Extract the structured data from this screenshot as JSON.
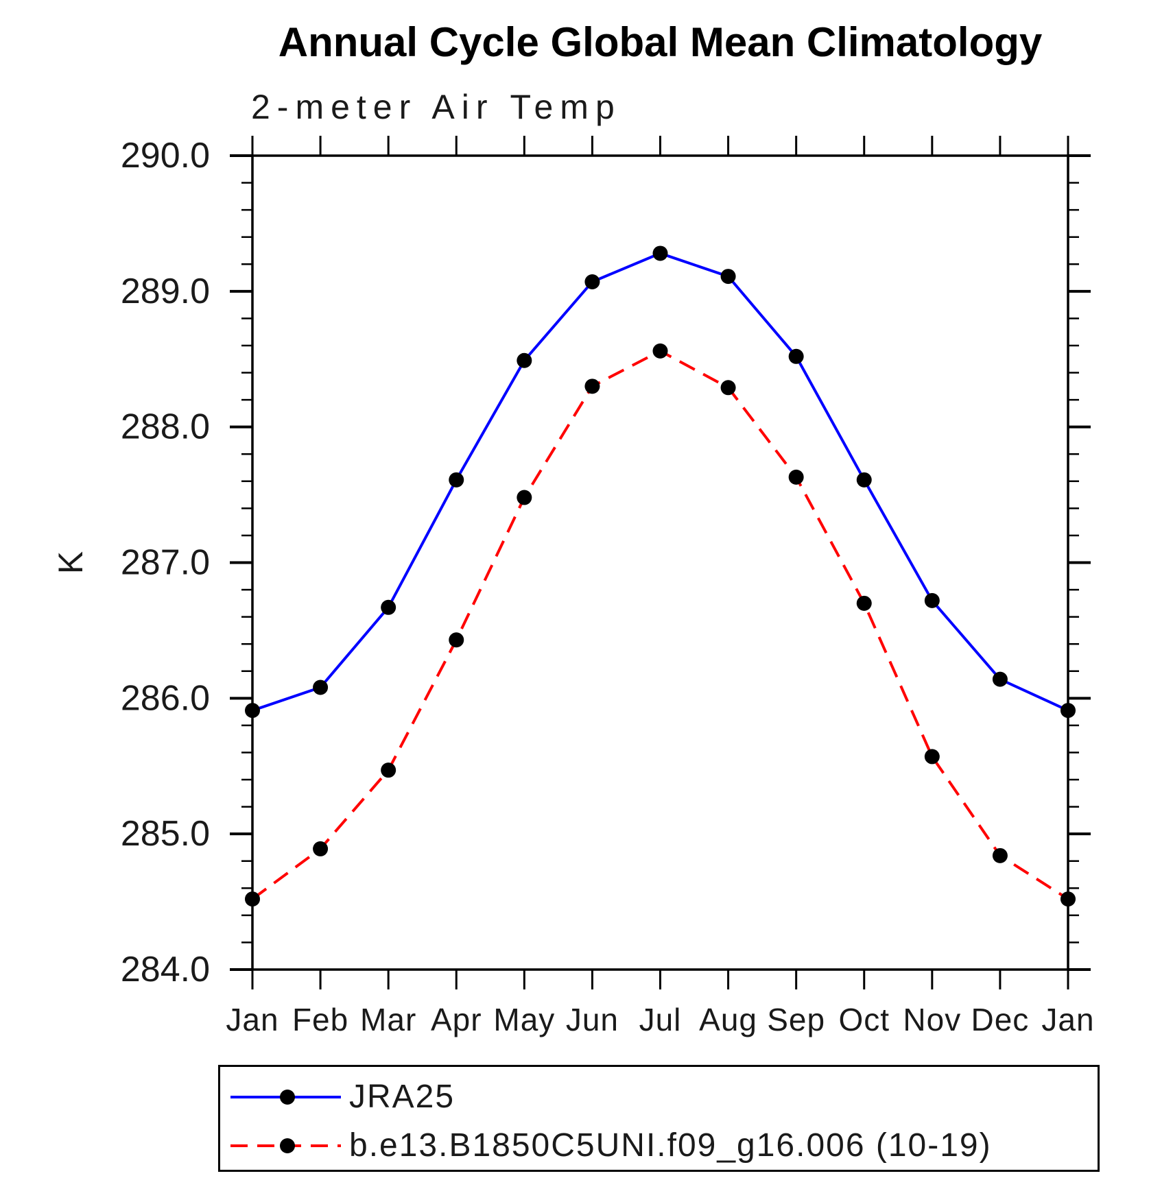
{
  "chart_data": {
    "type": "line",
    "title": "Annual Cycle Global Mean Climatology",
    "subtitle": "2-meter Air Temp",
    "ylabel": "K",
    "xlabel": "",
    "ylim": [
      284.0,
      290.0
    ],
    "ytick_step": 1.0,
    "yminor_step": 0.2,
    "ytick_labels": [
      "290.0",
      "289.0",
      "288.0",
      "287.0",
      "286.0",
      "285.0",
      "284.0"
    ],
    "categories": [
      "Jan",
      "Feb",
      "Mar",
      "Apr",
      "May",
      "Jun",
      "Jul",
      "Aug",
      "Sep",
      "Oct",
      "Nov",
      "Dec",
      "Jan"
    ],
    "grid": false,
    "legend_position": "bottom",
    "frame_color": "#000000",
    "marker_color": "#000000",
    "series": [
      {
        "name": "JRA25",
        "color": "#0000ff",
        "line_style": "solid",
        "dasharray": "none",
        "marker": "filled-circle",
        "values": [
          285.91,
          286.08,
          286.67,
          287.61,
          288.49,
          289.07,
          289.28,
          289.11,
          288.52,
          287.61,
          286.72,
          286.14,
          285.91
        ]
      },
      {
        "name": "b.e13.B1850C5UNI.f09_g16.006 (10-19)",
        "color": "#ff0000",
        "line_style": "dashed",
        "dasharray": "25 14",
        "marker": "filled-circle",
        "values": [
          284.52,
          284.89,
          285.47,
          286.43,
          287.48,
          288.3,
          288.56,
          288.29,
          287.63,
          286.7,
          285.57,
          284.84,
          284.52
        ]
      }
    ]
  }
}
